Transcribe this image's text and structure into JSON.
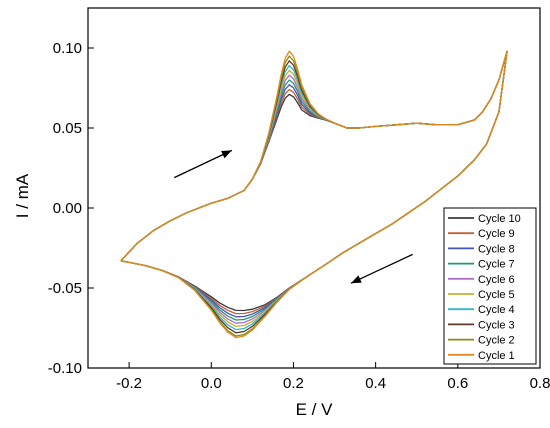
{
  "chart_data": {
    "type": "line",
    "title": "",
    "xlabel": "E / V",
    "ylabel": "I / mA",
    "xlim": [
      -0.3,
      0.8
    ],
    "ylim": [
      -0.1,
      0.125
    ],
    "xticks": [
      -0.2,
      0.0,
      0.2,
      0.4,
      0.6,
      0.8
    ],
    "xtick_labels": [
      "-0.2",
      "0.0",
      "0.2",
      "0.4",
      "0.6",
      "0.8"
    ],
    "yticks": [
      -0.1,
      -0.05,
      0.0,
      0.05,
      0.1
    ],
    "ytick_labels": [
      "-0.10",
      "-0.05",
      "0.00",
      "0.05",
      "0.10"
    ],
    "grid": false,
    "legend_position": "bottom-right",
    "base_forward": {
      "x": [
        -0.22,
        -0.18,
        -0.14,
        -0.1,
        -0.06,
        -0.02,
        0.0,
        0.04,
        0.08,
        0.1,
        0.12,
        0.14,
        0.16,
        0.17,
        0.18,
        0.19,
        0.2,
        0.21,
        0.22,
        0.24,
        0.26,
        0.28,
        0.3,
        0.33,
        0.36,
        0.4,
        0.45,
        0.5,
        0.55,
        0.6,
        0.64,
        0.66,
        0.68,
        0.7,
        0.72
      ],
      "y": [
        -0.033,
        -0.022,
        -0.014,
        -0.008,
        -0.003,
        0.001,
        0.003,
        0.006,
        0.011,
        0.018,
        0.028,
        0.043,
        0.06,
        0.069,
        0.076,
        0.079,
        0.077,
        0.072,
        0.066,
        0.06,
        0.057,
        0.055,
        0.053,
        0.05,
        0.05,
        0.051,
        0.052,
        0.053,
        0.052,
        0.052,
        0.055,
        0.06,
        0.068,
        0.08,
        0.098
      ]
    },
    "base_reverse": {
      "x": [
        0.72,
        0.7,
        0.67,
        0.64,
        0.6,
        0.56,
        0.52,
        0.48,
        0.44,
        0.4,
        0.36,
        0.32,
        0.28,
        0.25,
        0.22,
        0.19,
        0.16,
        0.13,
        0.1,
        0.08,
        0.06,
        0.04,
        0.02,
        0.0,
        -0.04,
        -0.08,
        -0.12,
        -0.16,
        -0.2,
        -0.22
      ],
      "y": [
        0.098,
        0.06,
        0.04,
        0.03,
        0.02,
        0.012,
        0.004,
        -0.003,
        -0.01,
        -0.016,
        -0.022,
        -0.028,
        -0.035,
        -0.04,
        -0.045,
        -0.05,
        -0.056,
        -0.061,
        -0.064,
        -0.065,
        -0.065,
        -0.063,
        -0.06,
        -0.056,
        -0.049,
        -0.043,
        -0.039,
        -0.036,
        -0.034,
        -0.033
      ]
    },
    "series": [
      {
        "name": "Cycle 10",
        "color": "#3a3a3a",
        "ox_peak_current": 0.071,
        "red_peak_current": -0.064
      },
      {
        "name": "Cycle 9",
        "color": "#c0603a",
        "ox_peak_current": 0.074,
        "red_peak_current": -0.066
      },
      {
        "name": "Cycle 8",
        "color": "#4455bb",
        "ox_peak_current": 0.077,
        "red_peak_current": -0.068
      },
      {
        "name": "Cycle 7",
        "color": "#1e9a70",
        "ox_peak_current": 0.08,
        "red_peak_current": -0.07
      },
      {
        "name": "Cycle 6",
        "color": "#b070c8",
        "ox_peak_current": 0.083,
        "red_peak_current": -0.072
      },
      {
        "name": "Cycle 5",
        "color": "#c8b030",
        "ox_peak_current": 0.086,
        "red_peak_current": -0.074
      },
      {
        "name": "Cycle 4",
        "color": "#30b8c8",
        "ox_peak_current": 0.089,
        "red_peak_current": -0.076
      },
      {
        "name": "Cycle 3",
        "color": "#5a3a2a",
        "ox_peak_current": 0.092,
        "red_peak_current": -0.078
      },
      {
        "name": "Cycle 2",
        "color": "#8a8a10",
        "ox_peak_current": 0.095,
        "red_peak_current": -0.08
      },
      {
        "name": "Cycle 1",
        "color": "#e08a20",
        "ox_peak_current": 0.098,
        "red_peak_current": -0.081
      }
    ],
    "annotations": [
      {
        "type": "arrow",
        "name": "forward-scan-arrow",
        "from": [
          -0.09,
          0.019
        ],
        "to": [
          0.05,
          0.036
        ]
      },
      {
        "type": "arrow",
        "name": "reverse-scan-arrow",
        "from": [
          0.49,
          -0.029
        ],
        "to": [
          0.34,
          -0.047
        ]
      }
    ]
  }
}
